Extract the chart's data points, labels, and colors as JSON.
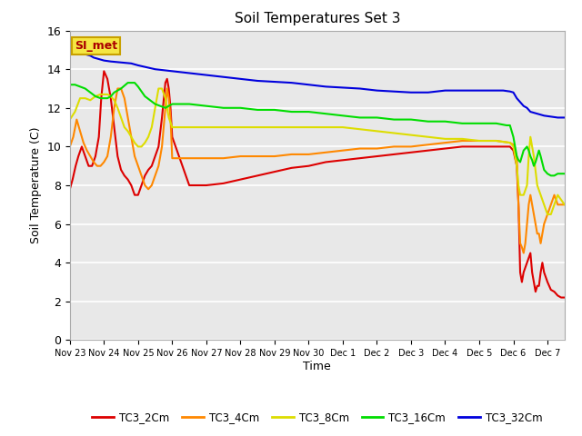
{
  "title": "Soil Temperatures Set 3",
  "xlabel": "Time",
  "ylabel": "Soil Temperature (C)",
  "ylim": [
    0,
    16
  ],
  "yticks": [
    0,
    2,
    4,
    6,
    8,
    10,
    12,
    14,
    16
  ],
  "xtick_labels": [
    "Nov 23",
    "Nov 24",
    "Nov 25",
    "Nov 26",
    "Nov 27",
    "Nov 28",
    "Nov 29",
    "Nov 30",
    "Dec 1",
    "Dec 2",
    "Dec 3",
    "Dec 4",
    "Dec 5",
    "Dec 6",
    "Dec 7"
  ],
  "background_color": "#e8e8e8",
  "grid_color": "#ffffff",
  "annotation_text": "SI_met",
  "annotation_bg": "#f5e642",
  "annotation_border": "#c8a000",
  "series": {
    "TC3_2Cm": {
      "color": "#dd0000",
      "x": [
        0.0,
        0.08,
        0.17,
        0.25,
        0.35,
        0.45,
        0.55,
        0.65,
        0.75,
        0.85,
        0.92,
        1.0,
        1.1,
        1.2,
        1.3,
        1.4,
        1.5,
        1.6,
        1.7,
        1.8,
        1.9,
        2.0,
        2.1,
        2.2,
        2.3,
        2.4,
        2.5,
        2.6,
        2.7,
        2.8,
        2.85,
        2.9,
        2.95,
        3.0,
        3.5,
        4.0,
        4.5,
        5.0,
        5.5,
        6.0,
        6.5,
        7.0,
        7.5,
        8.0,
        8.5,
        9.0,
        9.5,
        10.0,
        10.5,
        11.0,
        11.5,
        12.0,
        12.5,
        12.9,
        13.0,
        13.1,
        13.15,
        13.2,
        13.25,
        13.3,
        13.4,
        13.5,
        13.55,
        13.6,
        13.65,
        13.7,
        13.75,
        13.8,
        13.85,
        13.9,
        14.0,
        14.1,
        14.2,
        14.3,
        14.4,
        14.5
      ],
      "y": [
        7.8,
        8.3,
        9.0,
        9.5,
        10.0,
        9.5,
        9.0,
        9.0,
        9.5,
        10.5,
        12.5,
        13.9,
        13.5,
        12.5,
        11.0,
        9.5,
        8.8,
        8.5,
        8.3,
        8.0,
        7.5,
        7.5,
        8.0,
        8.5,
        8.8,
        9.0,
        9.5,
        10.0,
        11.5,
        13.3,
        13.5,
        13.0,
        12.0,
        10.5,
        8.0,
        8.0,
        8.1,
        8.3,
        8.5,
        8.7,
        8.9,
        9.0,
        9.2,
        9.3,
        9.4,
        9.5,
        9.6,
        9.7,
        9.8,
        9.9,
        10.0,
        10.0,
        10.0,
        10.0,
        9.8,
        9.0,
        7.0,
        3.5,
        3.0,
        3.5,
        4.0,
        4.5,
        3.5,
        3.0,
        2.5,
        2.8,
        2.8,
        3.5,
        4.0,
        3.5,
        3.0,
        2.6,
        2.5,
        2.3,
        2.2,
        2.2
      ]
    },
    "TC3_4Cm": {
      "color": "#ff8800",
      "x": [
        0.0,
        0.1,
        0.2,
        0.3,
        0.4,
        0.5,
        0.6,
        0.7,
        0.8,
        0.9,
        1.0,
        1.1,
        1.2,
        1.3,
        1.4,
        1.5,
        1.6,
        1.7,
        1.8,
        1.9,
        2.0,
        2.1,
        2.2,
        2.3,
        2.4,
        2.5,
        2.6,
        2.7,
        2.8,
        2.85,
        2.9,
        2.95,
        3.0,
        3.5,
        4.0,
        4.5,
        5.0,
        5.5,
        6.0,
        6.5,
        7.0,
        7.5,
        8.0,
        8.5,
        9.0,
        9.5,
        10.0,
        10.5,
        11.0,
        11.5,
        12.0,
        12.5,
        12.9,
        13.0,
        13.1,
        13.15,
        13.2,
        13.25,
        13.3,
        13.35,
        13.4,
        13.45,
        13.5,
        13.55,
        13.6,
        13.65,
        13.7,
        13.75,
        13.8,
        13.85,
        13.9,
        14.0,
        14.1,
        14.2,
        14.3,
        14.5
      ],
      "y": [
        10.0,
        10.5,
        11.4,
        10.8,
        10.2,
        9.8,
        9.5,
        9.2,
        9.0,
        9.0,
        9.2,
        9.5,
        10.5,
        12.0,
        13.0,
        13.0,
        12.5,
        11.5,
        10.5,
        9.5,
        9.0,
        8.5,
        8.0,
        7.8,
        8.0,
        8.5,
        9.0,
        10.0,
        12.0,
        13.0,
        12.5,
        11.5,
        9.4,
        9.4,
        9.4,
        9.4,
        9.5,
        9.5,
        9.5,
        9.6,
        9.6,
        9.7,
        9.8,
        9.9,
        9.9,
        10.0,
        10.0,
        10.1,
        10.2,
        10.3,
        10.3,
        10.3,
        10.2,
        10.1,
        9.5,
        7.0,
        5.0,
        4.8,
        4.5,
        5.0,
        6.0,
        7.0,
        7.5,
        7.0,
        6.5,
        6.0,
        5.5,
        5.5,
        5.0,
        5.5,
        6.0,
        6.5,
        7.0,
        7.5,
        7.0,
        7.0
      ]
    },
    "TC3_8Cm": {
      "color": "#dddd00",
      "x": [
        0.0,
        0.15,
        0.3,
        0.45,
        0.6,
        0.75,
        0.9,
        1.0,
        1.1,
        1.2,
        1.3,
        1.4,
        1.5,
        1.6,
        1.7,
        1.8,
        1.9,
        2.0,
        2.1,
        2.2,
        2.3,
        2.4,
        2.5,
        2.6,
        2.7,
        2.8,
        2.9,
        3.0,
        3.5,
        4.0,
        4.5,
        5.0,
        5.5,
        6.0,
        6.5,
        7.0,
        7.5,
        8.0,
        8.5,
        9.0,
        9.5,
        10.0,
        10.5,
        11.0,
        11.5,
        12.0,
        12.5,
        12.9,
        13.0,
        13.1,
        13.15,
        13.2,
        13.3,
        13.4,
        13.45,
        13.5,
        13.55,
        13.6,
        13.7,
        13.8,
        13.9,
        14.0,
        14.1,
        14.2,
        14.3,
        14.5
      ],
      "y": [
        11.4,
        11.8,
        12.5,
        12.5,
        12.4,
        12.6,
        12.7,
        12.7,
        12.7,
        12.6,
        12.4,
        12.0,
        11.5,
        11.0,
        10.8,
        10.5,
        10.2,
        10.0,
        10.0,
        10.2,
        10.5,
        11.0,
        12.0,
        13.0,
        13.0,
        12.5,
        11.5,
        11.0,
        11.0,
        11.0,
        11.0,
        11.0,
        11.0,
        11.0,
        11.0,
        11.0,
        11.0,
        11.0,
        10.9,
        10.8,
        10.7,
        10.6,
        10.5,
        10.4,
        10.4,
        10.3,
        10.3,
        10.2,
        10.0,
        9.0,
        8.0,
        7.5,
        7.5,
        8.0,
        9.5,
        10.5,
        10.0,
        9.5,
        8.0,
        7.5,
        7.0,
        6.5,
        6.5,
        7.0,
        7.5,
        7.0
      ]
    },
    "TC3_16Cm": {
      "color": "#00dd00",
      "x": [
        0.0,
        0.15,
        0.3,
        0.45,
        0.6,
        0.75,
        0.9,
        1.0,
        1.1,
        1.2,
        1.3,
        1.5,
        1.7,
        1.9,
        2.0,
        2.2,
        2.5,
        2.8,
        3.0,
        3.5,
        4.0,
        4.5,
        5.0,
        5.5,
        6.0,
        6.5,
        7.0,
        7.5,
        8.0,
        8.5,
        9.0,
        9.5,
        10.0,
        10.5,
        11.0,
        11.5,
        12.0,
        12.5,
        12.8,
        12.9,
        13.0,
        13.05,
        13.1,
        13.15,
        13.2,
        13.25,
        13.3,
        13.35,
        13.4,
        13.45,
        13.5,
        13.55,
        13.6,
        13.65,
        13.7,
        13.75,
        13.8,
        13.9,
        14.0,
        14.1,
        14.2,
        14.3,
        14.5
      ],
      "y": [
        13.2,
        13.2,
        13.1,
        13.0,
        12.8,
        12.6,
        12.5,
        12.5,
        12.5,
        12.6,
        12.8,
        13.0,
        13.3,
        13.3,
        13.1,
        12.6,
        12.2,
        12.0,
        12.2,
        12.2,
        12.1,
        12.0,
        12.0,
        11.9,
        11.9,
        11.8,
        11.8,
        11.7,
        11.6,
        11.5,
        11.5,
        11.4,
        11.4,
        11.3,
        11.3,
        11.2,
        11.2,
        11.2,
        11.1,
        11.1,
        10.5,
        10.0,
        9.5,
        9.3,
        9.2,
        9.5,
        9.8,
        9.9,
        10.0,
        9.8,
        9.5,
        9.3,
        9.0,
        9.2,
        9.5,
        9.8,
        9.5,
        8.8,
        8.6,
        8.5,
        8.5,
        8.6,
        8.6
      ]
    },
    "TC3_32Cm": {
      "color": "#0000dd",
      "x": [
        0.0,
        0.1,
        0.2,
        0.3,
        0.4,
        0.5,
        0.6,
        0.7,
        0.8,
        0.9,
        1.0,
        1.2,
        1.5,
        1.8,
        2.0,
        2.5,
        3.0,
        3.5,
        4.0,
        4.5,
        5.0,
        5.5,
        6.0,
        6.5,
        7.0,
        7.5,
        8.0,
        8.5,
        9.0,
        9.5,
        10.0,
        10.5,
        11.0,
        11.5,
        12.0,
        12.3,
        12.5,
        12.7,
        12.9,
        13.0,
        13.1,
        13.2,
        13.3,
        13.4,
        13.5,
        13.7,
        13.9,
        14.1,
        14.3,
        14.5
      ],
      "y": [
        15.0,
        14.95,
        14.9,
        14.85,
        14.8,
        14.75,
        14.7,
        14.6,
        14.55,
        14.5,
        14.45,
        14.4,
        14.35,
        14.3,
        14.2,
        14.0,
        13.9,
        13.8,
        13.7,
        13.6,
        13.5,
        13.4,
        13.35,
        13.3,
        13.2,
        13.1,
        13.05,
        13.0,
        12.9,
        12.85,
        12.8,
        12.8,
        12.9,
        12.9,
        12.9,
        12.9,
        12.9,
        12.9,
        12.85,
        12.8,
        12.5,
        12.3,
        12.1,
        12.0,
        11.8,
        11.7,
        11.6,
        11.55,
        11.5,
        11.5
      ]
    }
  }
}
